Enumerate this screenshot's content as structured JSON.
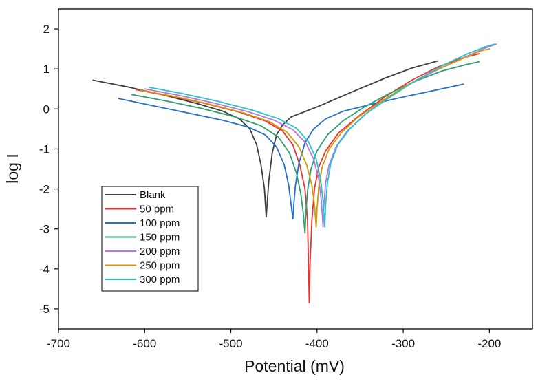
{
  "chart_data": {
    "type": "line",
    "xlabel": "Potential (mV)",
    "ylabel": "log I",
    "xlim": [
      -700,
      -150
    ],
    "ylim": [
      -5.5,
      2.5
    ],
    "xticks": [
      -700,
      -600,
      -500,
      -400,
      -300,
      -200
    ],
    "yticks": [
      -5,
      -4,
      -3,
      -2,
      -1,
      0,
      1,
      2
    ],
    "grid": false,
    "legend_position": "lower-left",
    "series": [
      {
        "name": "Blank",
        "color": "#3d3d3d",
        "points": [
          [
            -660,
            0.72
          ],
          [
            -620,
            0.55
          ],
          [
            -580,
            0.36
          ],
          [
            -540,
            0.14
          ],
          [
            -510,
            -0.05
          ],
          [
            -490,
            -0.25
          ],
          [
            -478,
            -0.5
          ],
          [
            -470,
            -0.9
          ],
          [
            -465,
            -1.4
          ],
          [
            -461,
            -2.0
          ],
          [
            -459,
            -2.7
          ],
          [
            -458,
            -2.4
          ],
          [
            -456,
            -1.8
          ],
          [
            -452,
            -1.1
          ],
          [
            -447,
            -0.65
          ],
          [
            -440,
            -0.4
          ],
          [
            -430,
            -0.2
          ],
          [
            -400,
            0.05
          ],
          [
            -360,
            0.42
          ],
          [
            -320,
            0.78
          ],
          [
            -290,
            1.02
          ],
          [
            -260,
            1.2
          ]
        ]
      },
      {
        "name": "50 ppm",
        "color": "#e8322e",
        "points": [
          [
            -610,
            0.48
          ],
          [
            -570,
            0.32
          ],
          [
            -530,
            0.14
          ],
          [
            -490,
            -0.08
          ],
          [
            -460,
            -0.3
          ],
          [
            -440,
            -0.55
          ],
          [
            -428,
            -0.9
          ],
          [
            -420,
            -1.4
          ],
          [
            -414,
            -2.0
          ],
          [
            -411,
            -2.8
          ],
          [
            -410,
            -3.8
          ],
          [
            -409,
            -4.85
          ],
          [
            -408,
            -3.8
          ],
          [
            -406,
            -2.8
          ],
          [
            -403,
            -2.0
          ],
          [
            -398,
            -1.45
          ],
          [
            -390,
            -1.05
          ],
          [
            -375,
            -0.6
          ],
          [
            -350,
            -0.15
          ],
          [
            -320,
            0.32
          ],
          [
            -290,
            0.72
          ],
          [
            -260,
            1.05
          ],
          [
            -230,
            1.28
          ],
          [
            -212,
            1.38
          ]
        ]
      },
      {
        "name": "100 ppm",
        "color": "#2271c9",
        "points": [
          [
            -630,
            0.26
          ],
          [
            -590,
            0.08
          ],
          [
            -550,
            -0.1
          ],
          [
            -510,
            -0.28
          ],
          [
            -480,
            -0.45
          ],
          [
            -460,
            -0.65
          ],
          [
            -447,
            -0.95
          ],
          [
            -438,
            -1.4
          ],
          [
            -433,
            -1.9
          ],
          [
            -430,
            -2.4
          ],
          [
            -428,
            -2.75
          ],
          [
            -427,
            -2.4
          ],
          [
            -425,
            -1.9
          ],
          [
            -421,
            -1.35
          ],
          [
            -414,
            -0.85
          ],
          [
            -404,
            -0.5
          ],
          [
            -390,
            -0.25
          ],
          [
            -370,
            -0.06
          ],
          [
            -340,
            0.1
          ],
          [
            -300,
            0.3
          ],
          [
            -260,
            0.48
          ],
          [
            -230,
            0.62
          ]
        ]
      },
      {
        "name": "150 ppm",
        "color": "#2aa070",
        "points": [
          [
            -615,
            0.36
          ],
          [
            -575,
            0.2
          ],
          [
            -535,
            0.02
          ],
          [
            -495,
            -0.2
          ],
          [
            -465,
            -0.42
          ],
          [
            -445,
            -0.7
          ],
          [
            -432,
            -1.1
          ],
          [
            -424,
            -1.6
          ],
          [
            -419,
            -2.1
          ],
          [
            -416,
            -2.6
          ],
          [
            -414,
            -3.1
          ],
          [
            -413,
            -2.6
          ],
          [
            -411,
            -2.05
          ],
          [
            -407,
            -1.5
          ],
          [
            -400,
            -1.05
          ],
          [
            -388,
            -0.65
          ],
          [
            -370,
            -0.3
          ],
          [
            -345,
            0.05
          ],
          [
            -315,
            0.4
          ],
          [
            -285,
            0.7
          ],
          [
            -255,
            0.95
          ],
          [
            -225,
            1.12
          ],
          [
            -212,
            1.18
          ]
        ]
      },
      {
        "name": "200 ppm",
        "color": "#b677e0",
        "points": [
          [
            -600,
            0.5
          ],
          [
            -560,
            0.34
          ],
          [
            -520,
            0.15
          ],
          [
            -480,
            -0.07
          ],
          [
            -450,
            -0.28
          ],
          [
            -428,
            -0.52
          ],
          [
            -413,
            -0.85
          ],
          [
            -404,
            -1.25
          ],
          [
            -398,
            -1.75
          ],
          [
            -395,
            -2.3
          ],
          [
            -393,
            -2.95
          ],
          [
            -392,
            -2.4
          ],
          [
            -390,
            -1.85
          ],
          [
            -386,
            -1.4
          ],
          [
            -378,
            -0.95
          ],
          [
            -365,
            -0.55
          ],
          [
            -345,
            -0.15
          ],
          [
            -320,
            0.25
          ],
          [
            -290,
            0.65
          ],
          [
            -260,
            0.98
          ],
          [
            -230,
            1.28
          ],
          [
            -205,
            1.52
          ],
          [
            -192,
            1.62
          ]
        ]
      },
      {
        "name": "250 ppm",
        "color": "#d2990c",
        "points": [
          [
            -605,
            0.47
          ],
          [
            -565,
            0.31
          ],
          [
            -525,
            0.12
          ],
          [
            -485,
            -0.1
          ],
          [
            -455,
            -0.32
          ],
          [
            -435,
            -0.58
          ],
          [
            -421,
            -0.95
          ],
          [
            -412,
            -1.4
          ],
          [
            -406,
            -1.9
          ],
          [
            -403,
            -2.4
          ],
          [
            -401,
            -2.95
          ],
          [
            -400,
            -2.5
          ],
          [
            -398,
            -1.95
          ],
          [
            -394,
            -1.45
          ],
          [
            -386,
            -1.0
          ],
          [
            -372,
            -0.6
          ],
          [
            -352,
            -0.2
          ],
          [
            -325,
            0.2
          ],
          [
            -295,
            0.6
          ],
          [
            -265,
            0.95
          ],
          [
            -235,
            1.22
          ],
          [
            -210,
            1.45
          ],
          [
            -200,
            1.5
          ]
        ]
      },
      {
        "name": "300 ppm",
        "color": "#27c2cf",
        "points": [
          [
            -595,
            0.54
          ],
          [
            -555,
            0.38
          ],
          [
            -515,
            0.19
          ],
          [
            -475,
            -0.03
          ],
          [
            -445,
            -0.24
          ],
          [
            -424,
            -0.48
          ],
          [
            -410,
            -0.82
          ],
          [
            -401,
            -1.25
          ],
          [
            -396,
            -1.75
          ],
          [
            -393,
            -2.3
          ],
          [
            -391,
            -2.95
          ],
          [
            -390,
            -2.4
          ],
          [
            -388,
            -1.85
          ],
          [
            -384,
            -1.35
          ],
          [
            -376,
            -0.9
          ],
          [
            -362,
            -0.5
          ],
          [
            -342,
            -0.1
          ],
          [
            -315,
            0.3
          ],
          [
            -285,
            0.72
          ],
          [
            -255,
            1.08
          ],
          [
            -225,
            1.38
          ],
          [
            -205,
            1.55
          ],
          [
            -194,
            1.62
          ]
        ]
      }
    ]
  }
}
